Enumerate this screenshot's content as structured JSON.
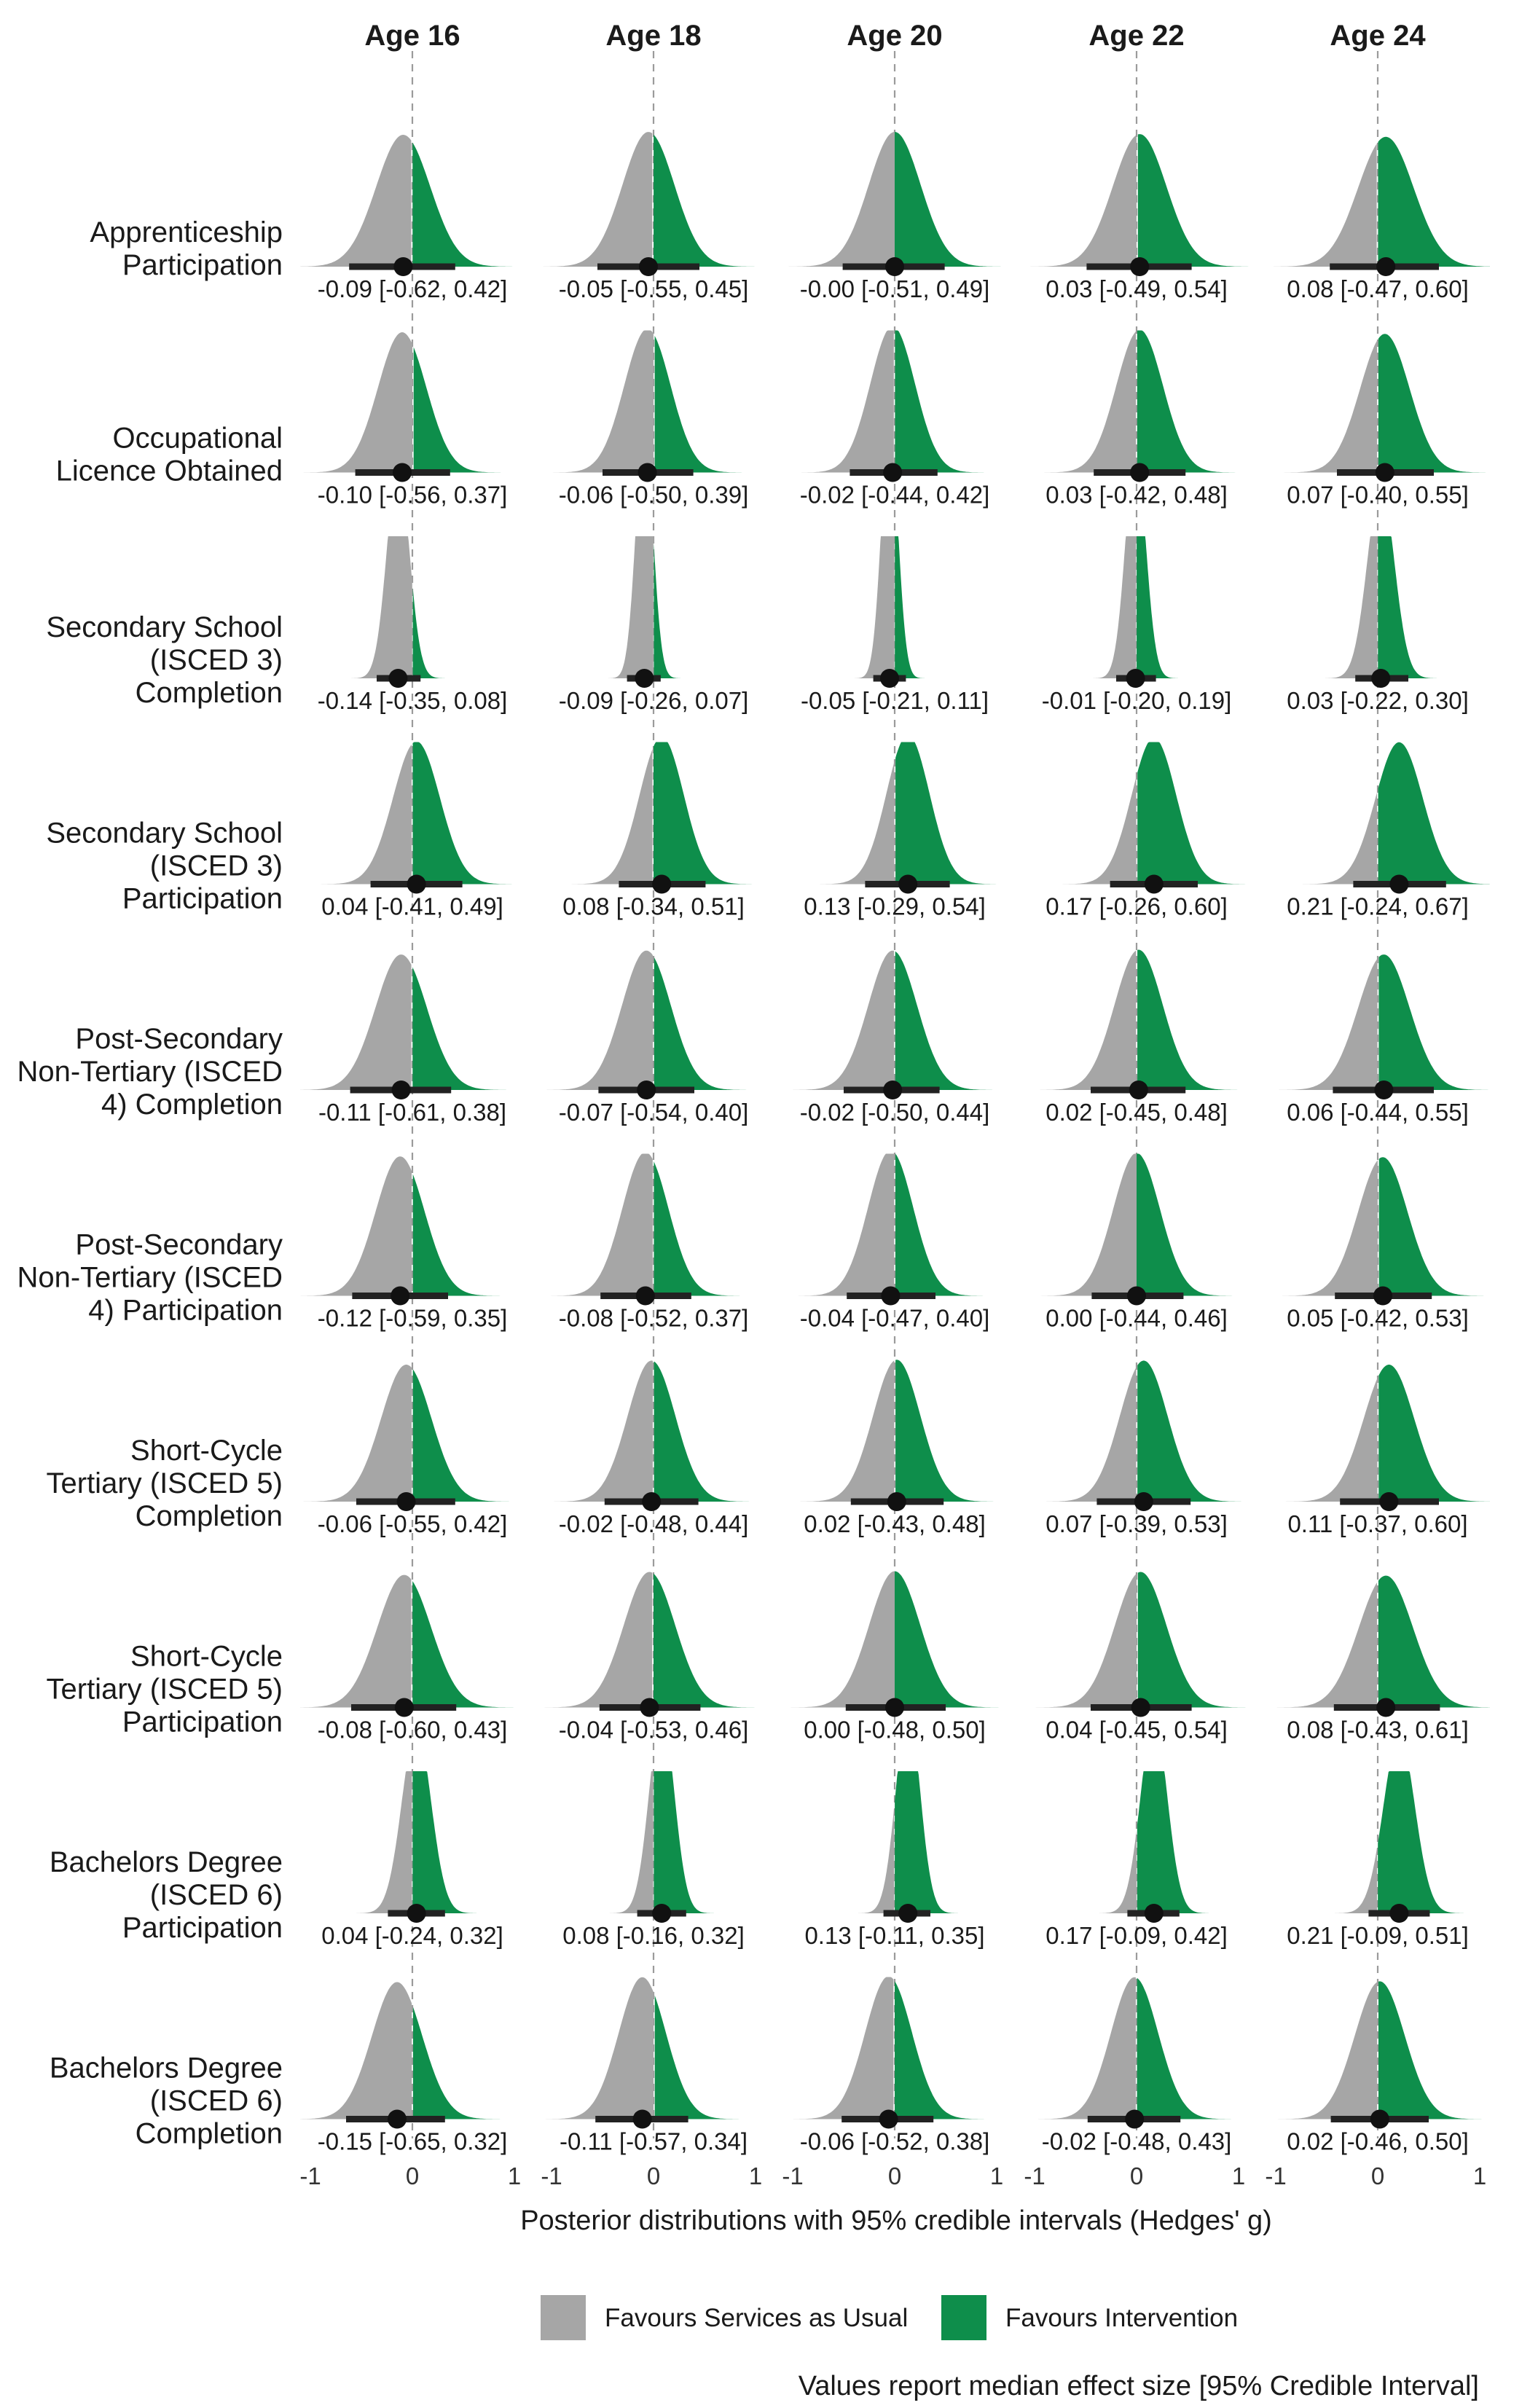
{
  "chart_data": {
    "type": "posterior-density-grid",
    "columns": [
      "Age 16",
      "Age 18",
      "Age 20",
      "Age 22",
      "Age 24"
    ],
    "rows": [
      "Apprenticeship\nParticipation",
      "Occupational\nLicence Obtained",
      "Secondary School\n(ISCED 3)\nCompletion",
      "Secondary School\n(ISCED 3)\nParticipation",
      "Post-Secondary\nNon-Tertiary (ISCED\n4) Completion",
      "Post-Secondary\nNon-Tertiary (ISCED\n4) Participation",
      "Short-Cycle\nTertiary (ISCED 5)\nCompletion",
      "Short-Cycle\nTertiary (ISCED 5)\nParticipation",
      "Bachelors Degree\n(ISCED 6)\nParticipation",
      "Bachelors Degree\n(ISCED 6)\nCompletion"
    ],
    "cells": [
      [
        [
          -0.09,
          -0.62,
          0.42
        ],
        [
          -0.05,
          -0.55,
          0.45
        ],
        [
          -0.0,
          -0.51,
          0.49
        ],
        [
          0.03,
          -0.49,
          0.54
        ],
        [
          0.08,
          -0.47,
          0.6
        ]
      ],
      [
        [
          -0.1,
          -0.56,
          0.37
        ],
        [
          -0.06,
          -0.5,
          0.39
        ],
        [
          -0.02,
          -0.44,
          0.42
        ],
        [
          0.03,
          -0.42,
          0.48
        ],
        [
          0.07,
          -0.4,
          0.55
        ]
      ],
      [
        [
          -0.14,
          -0.35,
          0.08
        ],
        [
          -0.09,
          -0.26,
          0.07
        ],
        [
          -0.05,
          -0.21,
          0.11
        ],
        [
          -0.01,
          -0.2,
          0.19
        ],
        [
          0.03,
          -0.22,
          0.3
        ]
      ],
      [
        [
          0.04,
          -0.41,
          0.49
        ],
        [
          0.08,
          -0.34,
          0.51
        ],
        [
          0.13,
          -0.29,
          0.54
        ],
        [
          0.17,
          -0.26,
          0.6
        ],
        [
          0.21,
          -0.24,
          0.67
        ]
      ],
      [
        [
          -0.11,
          -0.61,
          0.38
        ],
        [
          -0.07,
          -0.54,
          0.4
        ],
        [
          -0.02,
          -0.5,
          0.44
        ],
        [
          0.02,
          -0.45,
          0.48
        ],
        [
          0.06,
          -0.44,
          0.55
        ]
      ],
      [
        [
          -0.12,
          -0.59,
          0.35
        ],
        [
          -0.08,
          -0.52,
          0.37
        ],
        [
          -0.04,
          -0.47,
          0.4
        ],
        [
          0.0,
          -0.44,
          0.46
        ],
        [
          0.05,
          -0.42,
          0.53
        ]
      ],
      [
        [
          -0.06,
          -0.55,
          0.42
        ],
        [
          -0.02,
          -0.48,
          0.44
        ],
        [
          0.02,
          -0.43,
          0.48
        ],
        [
          0.07,
          -0.39,
          0.53
        ],
        [
          0.11,
          -0.37,
          0.6
        ]
      ],
      [
        [
          -0.08,
          -0.6,
          0.43
        ],
        [
          -0.04,
          -0.53,
          0.46
        ],
        [
          0.0,
          -0.48,
          0.5
        ],
        [
          0.04,
          -0.45,
          0.54
        ],
        [
          0.08,
          -0.43,
          0.61
        ]
      ],
      [
        [
          0.04,
          -0.24,
          0.32
        ],
        [
          0.08,
          -0.16,
          0.32
        ],
        [
          0.13,
          -0.11,
          0.35
        ],
        [
          0.17,
          -0.09,
          0.42
        ],
        [
          0.21,
          -0.09,
          0.51
        ]
      ],
      [
        [
          -0.15,
          -0.65,
          0.32
        ],
        [
          -0.11,
          -0.57,
          0.34
        ],
        [
          -0.06,
          -0.52,
          0.38
        ],
        [
          -0.02,
          -0.48,
          0.43
        ],
        [
          0.02,
          -0.46,
          0.5
        ]
      ]
    ],
    "annotations": [
      [
        "-0.09 [-0.62, 0.42]",
        "-0.05 [-0.55, 0.45]",
        "-0.00 [-0.51, 0.49]",
        "0.03 [-0.49, 0.54]",
        "0.08 [-0.47, 0.60]"
      ],
      [
        "-0.10 [-0.56, 0.37]",
        "-0.06 [-0.50, 0.39]",
        "-0.02 [-0.44, 0.42]",
        "0.03 [-0.42, 0.48]",
        "0.07 [-0.40, 0.55]"
      ],
      [
        "-0.14 [-0.35, 0.08]",
        "-0.09 [-0.26, 0.07]",
        "-0.05 [-0.21, 0.11]",
        "-0.01 [-0.20, 0.19]",
        "0.03 [-0.22, 0.30]"
      ],
      [
        "0.04 [-0.41, 0.49]",
        "0.08 [-0.34, 0.51]",
        "0.13 [-0.29, 0.54]",
        "0.17 [-0.26, 0.60]",
        "0.21 [-0.24, 0.67]"
      ],
      [
        "-0.11 [-0.61, 0.38]",
        "-0.07 [-0.54, 0.40]",
        "-0.02 [-0.50, 0.44]",
        "0.02 [-0.45, 0.48]",
        "0.06 [-0.44, 0.55]"
      ],
      [
        "-0.12 [-0.59, 0.35]",
        "-0.08 [-0.52, 0.37]",
        "-0.04 [-0.47, 0.40]",
        "0.00 [-0.44, 0.46]",
        "0.05 [-0.42, 0.53]"
      ],
      [
        "-0.06 [-0.55, 0.42]",
        "-0.02 [-0.48, 0.44]",
        "0.02 [-0.43, 0.48]",
        "0.07 [-0.39, 0.53]",
        "0.11 [-0.37, 0.60]"
      ],
      [
        "-0.08 [-0.60, 0.43]",
        "-0.04 [-0.53, 0.46]",
        "0.00 [-0.48, 0.50]",
        "0.04 [-0.45, 0.54]",
        "0.08 [-0.43, 0.61]"
      ],
      [
        "0.04 [-0.24, 0.32]",
        "0.08 [-0.16, 0.32]",
        "0.13 [-0.11, 0.35]",
        "0.17 [-0.09, 0.42]",
        "0.21 [-0.09, 0.51]"
      ],
      [
        "-0.15 [-0.65, 0.32]",
        "-0.11 [-0.57, 0.34]",
        "-0.06 [-0.52, 0.38]",
        "-0.02 [-0.48, 0.43]",
        "0.02 [-0.46, 0.50]"
      ]
    ],
    "xlim": [
      -1,
      1
    ],
    "xticks": [
      "-1",
      "0",
      "1"
    ],
    "reference_line": 0,
    "xlabel": "Posterior distributions with 95% credible intervals (Hedges' g)",
    "legend": [
      {
        "label": "Favours Services as Usual",
        "color": "#a6a6a6"
      },
      {
        "label": "Favours Intervention",
        "color": "#0e8e4b"
      }
    ],
    "legend_position": "bottom",
    "caption": "Values report median effect size [95% Credible Interval]",
    "grid": false
  }
}
